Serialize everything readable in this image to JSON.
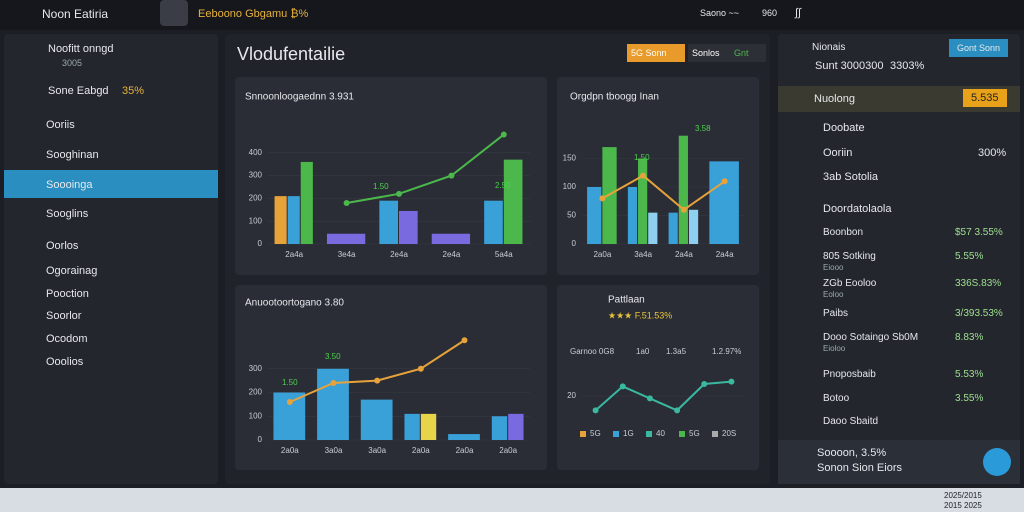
{
  "topbar": {
    "app": "Noon Eatiria",
    "status": "Eeboono Gbgamu ₿%",
    "search": "Saono ~~",
    "search_value": "960",
    "badge": "∫∫"
  },
  "sidebar": {
    "user": "Noofitt onngd",
    "user_sub": "3005",
    "balance": "Sone Eabgd",
    "balance_pct": "35%",
    "items": [
      "Ooriis",
      "Sooghinan",
      "Soooinga",
      "Sooglins",
      "Oorlos",
      "Ogorainag",
      "Pooction",
      "Soorlor",
      "Ocodom",
      "Ooolios"
    ]
  },
  "main": {
    "title": "Vlodufentailie",
    "tabs": [
      "5G Sonn",
      "Sonlos",
      "Gnt"
    ]
  },
  "charts": [
    {
      "type": "bar_line",
      "title": "Snnoonloogaednn 3.931",
      "categories": [
        "2a4a",
        "3e4a",
        "2e4a",
        "2e4a",
        "5a4a"
      ],
      "ylim": [
        0,
        500
      ],
      "yticks": [
        0,
        100,
        200,
        300,
        400
      ],
      "bars": [
        {
          "color": "#e8a23a",
          "values": [
            210,
            null,
            null,
            null,
            null
          ]
        },
        {
          "color": "#3aa0d8",
          "values": [
            210,
            null,
            190,
            null,
            190
          ]
        },
        {
          "color": "#4cb84c",
          "values": [
            360,
            null,
            null,
            null,
            370
          ]
        },
        {
          "color": "#7a6ae0",
          "values": [
            null,
            45,
            145,
            45,
            null
          ]
        }
      ],
      "line": {
        "color": "#4cb84c",
        "values": [
          null,
          180,
          220,
          300,
          480
        ]
      },
      "annotations": [
        "2.50",
        "1.50"
      ]
    },
    {
      "type": "bar_line",
      "title": "Orgdpn tboogg Inan",
      "categories": [
        "2a0a",
        "3a4a",
        "2a4a",
        "2a4a"
      ],
      "ylim": [
        0,
        200
      ],
      "yticks": [
        0,
        50,
        100,
        150
      ],
      "bars": [
        {
          "color": "#3aa0d8",
          "values": [
            100,
            100,
            55,
            145
          ]
        },
        {
          "color": "#4cb84c",
          "values": [
            170,
            150,
            190,
            null
          ]
        },
        {
          "color": "#8fd0f0",
          "values": [
            null,
            55,
            60,
            null
          ]
        }
      ],
      "line": {
        "color": "#e8a23a",
        "values": [
          80,
          120,
          60,
          110
        ]
      },
      "annotations": [
        "3.58",
        "1.50"
      ]
    },
    {
      "type": "bar_line",
      "title": "Anuootoortogano 3.80",
      "categories": [
        "2a0a",
        "3a0a",
        "3a0a",
        "2a0a",
        "2a0a",
        "2a0a"
      ],
      "ylim": [
        0,
        400
      ],
      "yticks": [
        0,
        100,
        200,
        300
      ],
      "bars": [
        {
          "color": "#3aa0d8",
          "values": [
            200,
            300,
            170,
            110,
            25,
            100
          ]
        },
        {
          "color": "#e8d44a",
          "values": [
            null,
            null,
            null,
            110,
            null,
            null
          ]
        },
        {
          "color": "#7a6ae0",
          "values": [
            null,
            null,
            null,
            null,
            null,
            110
          ]
        }
      ],
      "line": {
        "color": "#e8a23a",
        "values": [
          160,
          240,
          250,
          300,
          420,
          null
        ]
      },
      "annotations": [
        "1.50",
        "3.50"
      ]
    },
    {
      "type": "line",
      "title": "Pattlaan",
      "rating": "★★★ F.51.53%",
      "stats": [
        "Garnoo 0G8",
        "1a0",
        "1.3a5",
        "1.2.97%"
      ],
      "ylim": [
        0,
        40
      ],
      "yticks": [
        20
      ],
      "line": {
        "color": "#3ab8a0",
        "values": [
          8,
          28,
          18,
          8,
          30,
          32
        ]
      },
      "legend": [
        {
          "name": "5G",
          "color": "#e8a23a"
        },
        {
          "name": "1G",
          "color": "#3aa0d8"
        },
        {
          "name": "40",
          "color": "#3ab8a0"
        },
        {
          "name": "5G",
          "color": "#4cb84c"
        },
        {
          "name": "20S",
          "color": "#aaaaaa"
        }
      ]
    }
  ],
  "right": {
    "title": "Nionais",
    "button": "Gont Sonn",
    "summary": "Sunt 3000300",
    "summary_value": "3303%",
    "highlight": "Nuolong",
    "highlight_value": "5.535",
    "rows": [
      {
        "label": "Doobate"
      },
      {
        "label": "Ooriin",
        "value": "300%"
      },
      {
        "label": "3ab Sotolia"
      }
    ],
    "section": "Doordatolaola",
    "list": [
      {
        "label": "Boonbon",
        "value": "$57 3.55%"
      },
      {
        "label": "805 Sotking",
        "sub": "Eiooo",
        "value": "5.55%"
      },
      {
        "label": "ZGb Eooloo",
        "sub": "Eoloo",
        "value": "336S.83%"
      },
      {
        "label": "Paibs",
        "value": "3/393.53%"
      },
      {
        "label": "Dooo Sotaingo Sb0M",
        "sub": "Eioloo",
        "value": "8.83%"
      },
      {
        "label": "Pnoposbaib",
        "value": "5.53%"
      },
      {
        "label": "Botoo",
        "value": "3.55%"
      },
      {
        "label": "Daoo Sbaitd"
      }
    ],
    "footer": "Soooon, 3.5%",
    "footer_sub": "Sonon Sion Eiors"
  },
  "taskbar": {
    "clock": "2025/2015",
    "date": "2015 2025"
  }
}
